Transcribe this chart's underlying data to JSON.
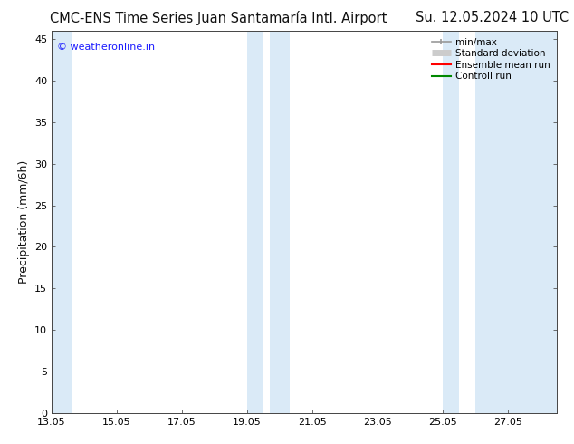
{
  "title_left": "CMC-ENS Time Series Juan Santamaría Intl. Airport",
  "title_right": "Su. 12.05.2024 10 UTC",
  "ylabel": "Precipitation (mm/6h)",
  "watermark": "© weatheronline.in",
  "watermark_color": "#1a1aff",
  "ylim": [
    0,
    46
  ],
  "yticks": [
    0,
    5,
    10,
    15,
    20,
    25,
    30,
    35,
    40,
    45
  ],
  "background_color": "#ffffff",
  "plot_bg_color": "#ffffff",
  "shade_color": "#daeaf7",
  "shade_bands": [
    [
      0.0,
      0.6
    ],
    [
      6.0,
      6.5
    ],
    [
      6.7,
      7.3
    ],
    [
      12.0,
      12.5
    ],
    [
      13.0,
      15.5
    ]
  ],
  "xticks_labels": [
    "13.05",
    "15.05",
    "17.05",
    "19.05",
    "21.05",
    "23.05",
    "25.05",
    "27.05"
  ],
  "xticks_values": [
    0,
    2,
    4,
    6,
    8,
    10,
    12,
    14
  ],
  "xlim": [
    0,
    15.5
  ],
  "legend_entries": [
    {
      "label": "min/max",
      "color": "#999999",
      "lw": 1.2
    },
    {
      "label": "Standard deviation",
      "color": "#cccccc",
      "lw": 5
    },
    {
      "label": "Ensemble mean run",
      "color": "#ff0000",
      "lw": 1.5
    },
    {
      "label": "Controll run",
      "color": "#008800",
      "lw": 1.5
    }
  ],
  "title_fontsize": 10.5,
  "ylabel_fontsize": 9,
  "tick_fontsize": 8,
  "legend_fontsize": 7.5,
  "watermark_fontsize": 8
}
